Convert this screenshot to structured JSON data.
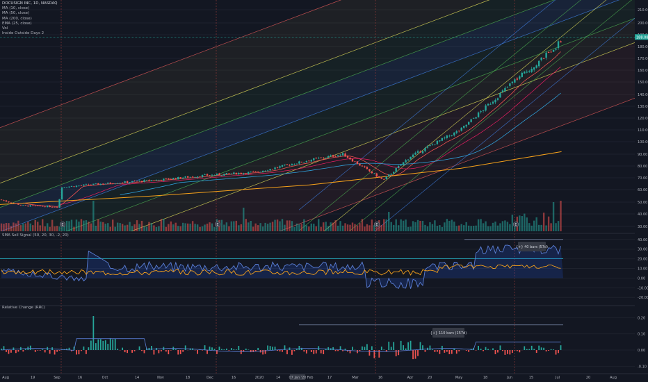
{
  "header": {
    "symbol_line": "DOCUSIGN INC, 1D, NASDAQ",
    "studies": [
      "MA (10, close)",
      "MA (50, close)",
      "MA (200, close)",
      "EMA (25, close)",
      "Vol",
      "Inside Outside Days 2"
    ]
  },
  "panels": {
    "sma_signal_label": "SMA Sell Signal (50, 20, 30, -2, 20)",
    "rc_label": "Relative Change (RRC)"
  },
  "colors": {
    "background": "#131722",
    "up": "#26a69a",
    "down": "#ef5350",
    "ma200": "#f7a21b",
    "ma50": "#2f9fd8",
    "ma10": "#ef5350",
    "channel_outer": "#e05959",
    "channel_mid": "#e2e05a",
    "channel_inner": "#3f7ee0",
    "channel_green": "#4caf50",
    "signal_line": "#26c6da"
  },
  "chart_data": [
    {
      "type": "candlestick",
      "title": "DOCUSIGN INC, 1D, NASDAQ",
      "x_start": "2019-08-01",
      "x_end": "2020-07-01",
      "ylim": [
        30,
        215
      ],
      "y_ticks": [
        "210.00",
        "200.00",
        "190.00",
        "180.00",
        "170.00",
        "160.00",
        "150.00",
        "140.00",
        "130.00",
        "120.00",
        "110.00",
        "100.00",
        "90.00",
        "80.00",
        "70.00",
        "60.00",
        "50.00",
        "40.00",
        "30.00"
      ],
      "last_price_label": "188.08",
      "series_close_keypoints": [
        {
          "x": "2019-08-01",
          "y": 52
        },
        {
          "x": "2019-08-15",
          "y": 47
        },
        {
          "x": "2019-09-05",
          "y": 46
        },
        {
          "x": "2019-09-06",
          "y": 62
        },
        {
          "x": "2019-10-01",
          "y": 65
        },
        {
          "x": "2019-11-01",
          "y": 68
        },
        {
          "x": "2019-12-01",
          "y": 72
        },
        {
          "x": "2020-01-01",
          "y": 75
        },
        {
          "x": "2020-02-01",
          "y": 85
        },
        {
          "x": "2020-02-21",
          "y": 90
        },
        {
          "x": "2020-03-16",
          "y": 68
        },
        {
          "x": "2020-04-01",
          "y": 88
        },
        {
          "x": "2020-05-01",
          "y": 110
        },
        {
          "x": "2020-06-01",
          "y": 150
        },
        {
          "x": "2020-06-15",
          "y": 165
        },
        {
          "x": "2020-06-30",
          "y": 185
        }
      ],
      "ma200_keypoints": [
        {
          "x": "2019-08-01",
          "y": 48
        },
        {
          "x": "2019-11-01",
          "y": 55
        },
        {
          "x": "2020-02-01",
          "y": 64
        },
        {
          "x": "2020-05-01",
          "y": 78
        },
        {
          "x": "2020-06-30",
          "y": 92
        }
      ],
      "volume_axis_note": "Vol"
    },
    {
      "type": "area",
      "title": "SMA Sell Signal (50, 20, 30, -2, 20)",
      "ylim": [
        -22,
        42
      ],
      "y_ticks": [
        "40.00",
        "30.00",
        "20.00",
        "10.00",
        "0.00",
        "-10.00",
        "-20.00"
      ],
      "hline": 20,
      "annotation": "{+} 40 bars (57d)"
    },
    {
      "type": "bar",
      "title": "Relative Change (RRC)",
      "ylim": [
        -0.12,
        0.24
      ],
      "y_ticks": [
        "0.20",
        "0.10",
        "0.00",
        "-0.10"
      ],
      "annotation": "{+} 110 bars (157d)"
    }
  ],
  "x_axis": {
    "labels": [
      "Aug",
      "19",
      "Sep",
      "16",
      "Oct",
      "14",
      "Nov",
      "18",
      "Dec",
      "16",
      "2020",
      "14",
      "07 Jan '20",
      "Feb",
      "17",
      "Mar",
      "16",
      "Apr",
      "20",
      "May",
      "18",
      "Jun",
      "15",
      "Jul",
      "20",
      "Aug"
    ],
    "highlight_label": "07 Jan '20"
  },
  "markers": {
    "event_badge": "E",
    "divider_months": [
      "Sep",
      "Dec",
      "Mar",
      "Jun"
    ]
  }
}
